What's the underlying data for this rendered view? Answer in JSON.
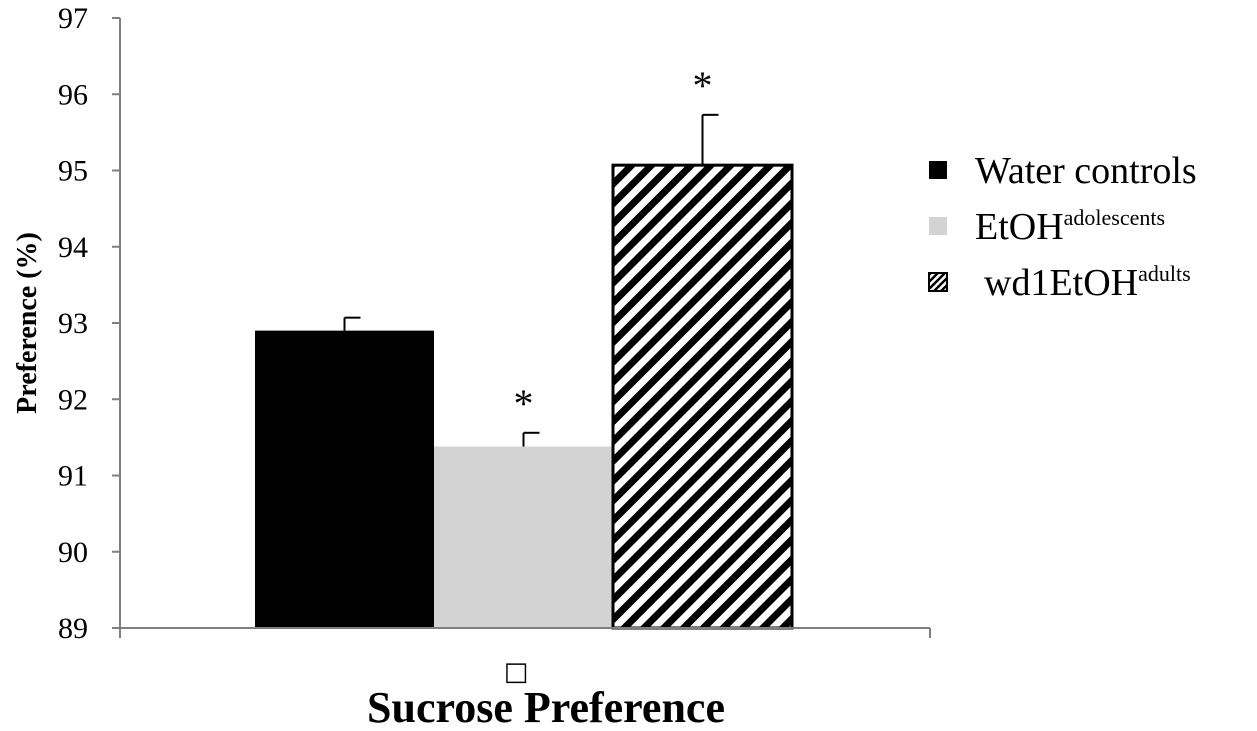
{
  "chart_data": {
    "type": "bar",
    "title": "",
    "xlabel": "Sucrose Preference",
    "ylabel": "Preference (%)",
    "ylim": [
      89,
      97
    ],
    "yticks": [
      89,
      90,
      91,
      92,
      93,
      94,
      95,
      96,
      97
    ],
    "grid": false,
    "legend_position": "right",
    "x_glyph": "□",
    "series": [
      {
        "name": "Water controls",
        "sup": "",
        "value": 92.9,
        "error": 0.17,
        "annotation": "",
        "fill": "#000000",
        "pattern": "solid"
      },
      {
        "name": "EtOH",
        "sup": "adolescents",
        "value": 91.38,
        "error": 0.18,
        "annotation": "*",
        "fill": "#d3d3d3",
        "pattern": "solid"
      },
      {
        "name": "wd1EtOH",
        "sup": "adults",
        "value": 95.07,
        "error": 0.66,
        "annotation": "*",
        "fill": "#ffffff",
        "pattern": "diagonal-stripes"
      }
    ]
  }
}
